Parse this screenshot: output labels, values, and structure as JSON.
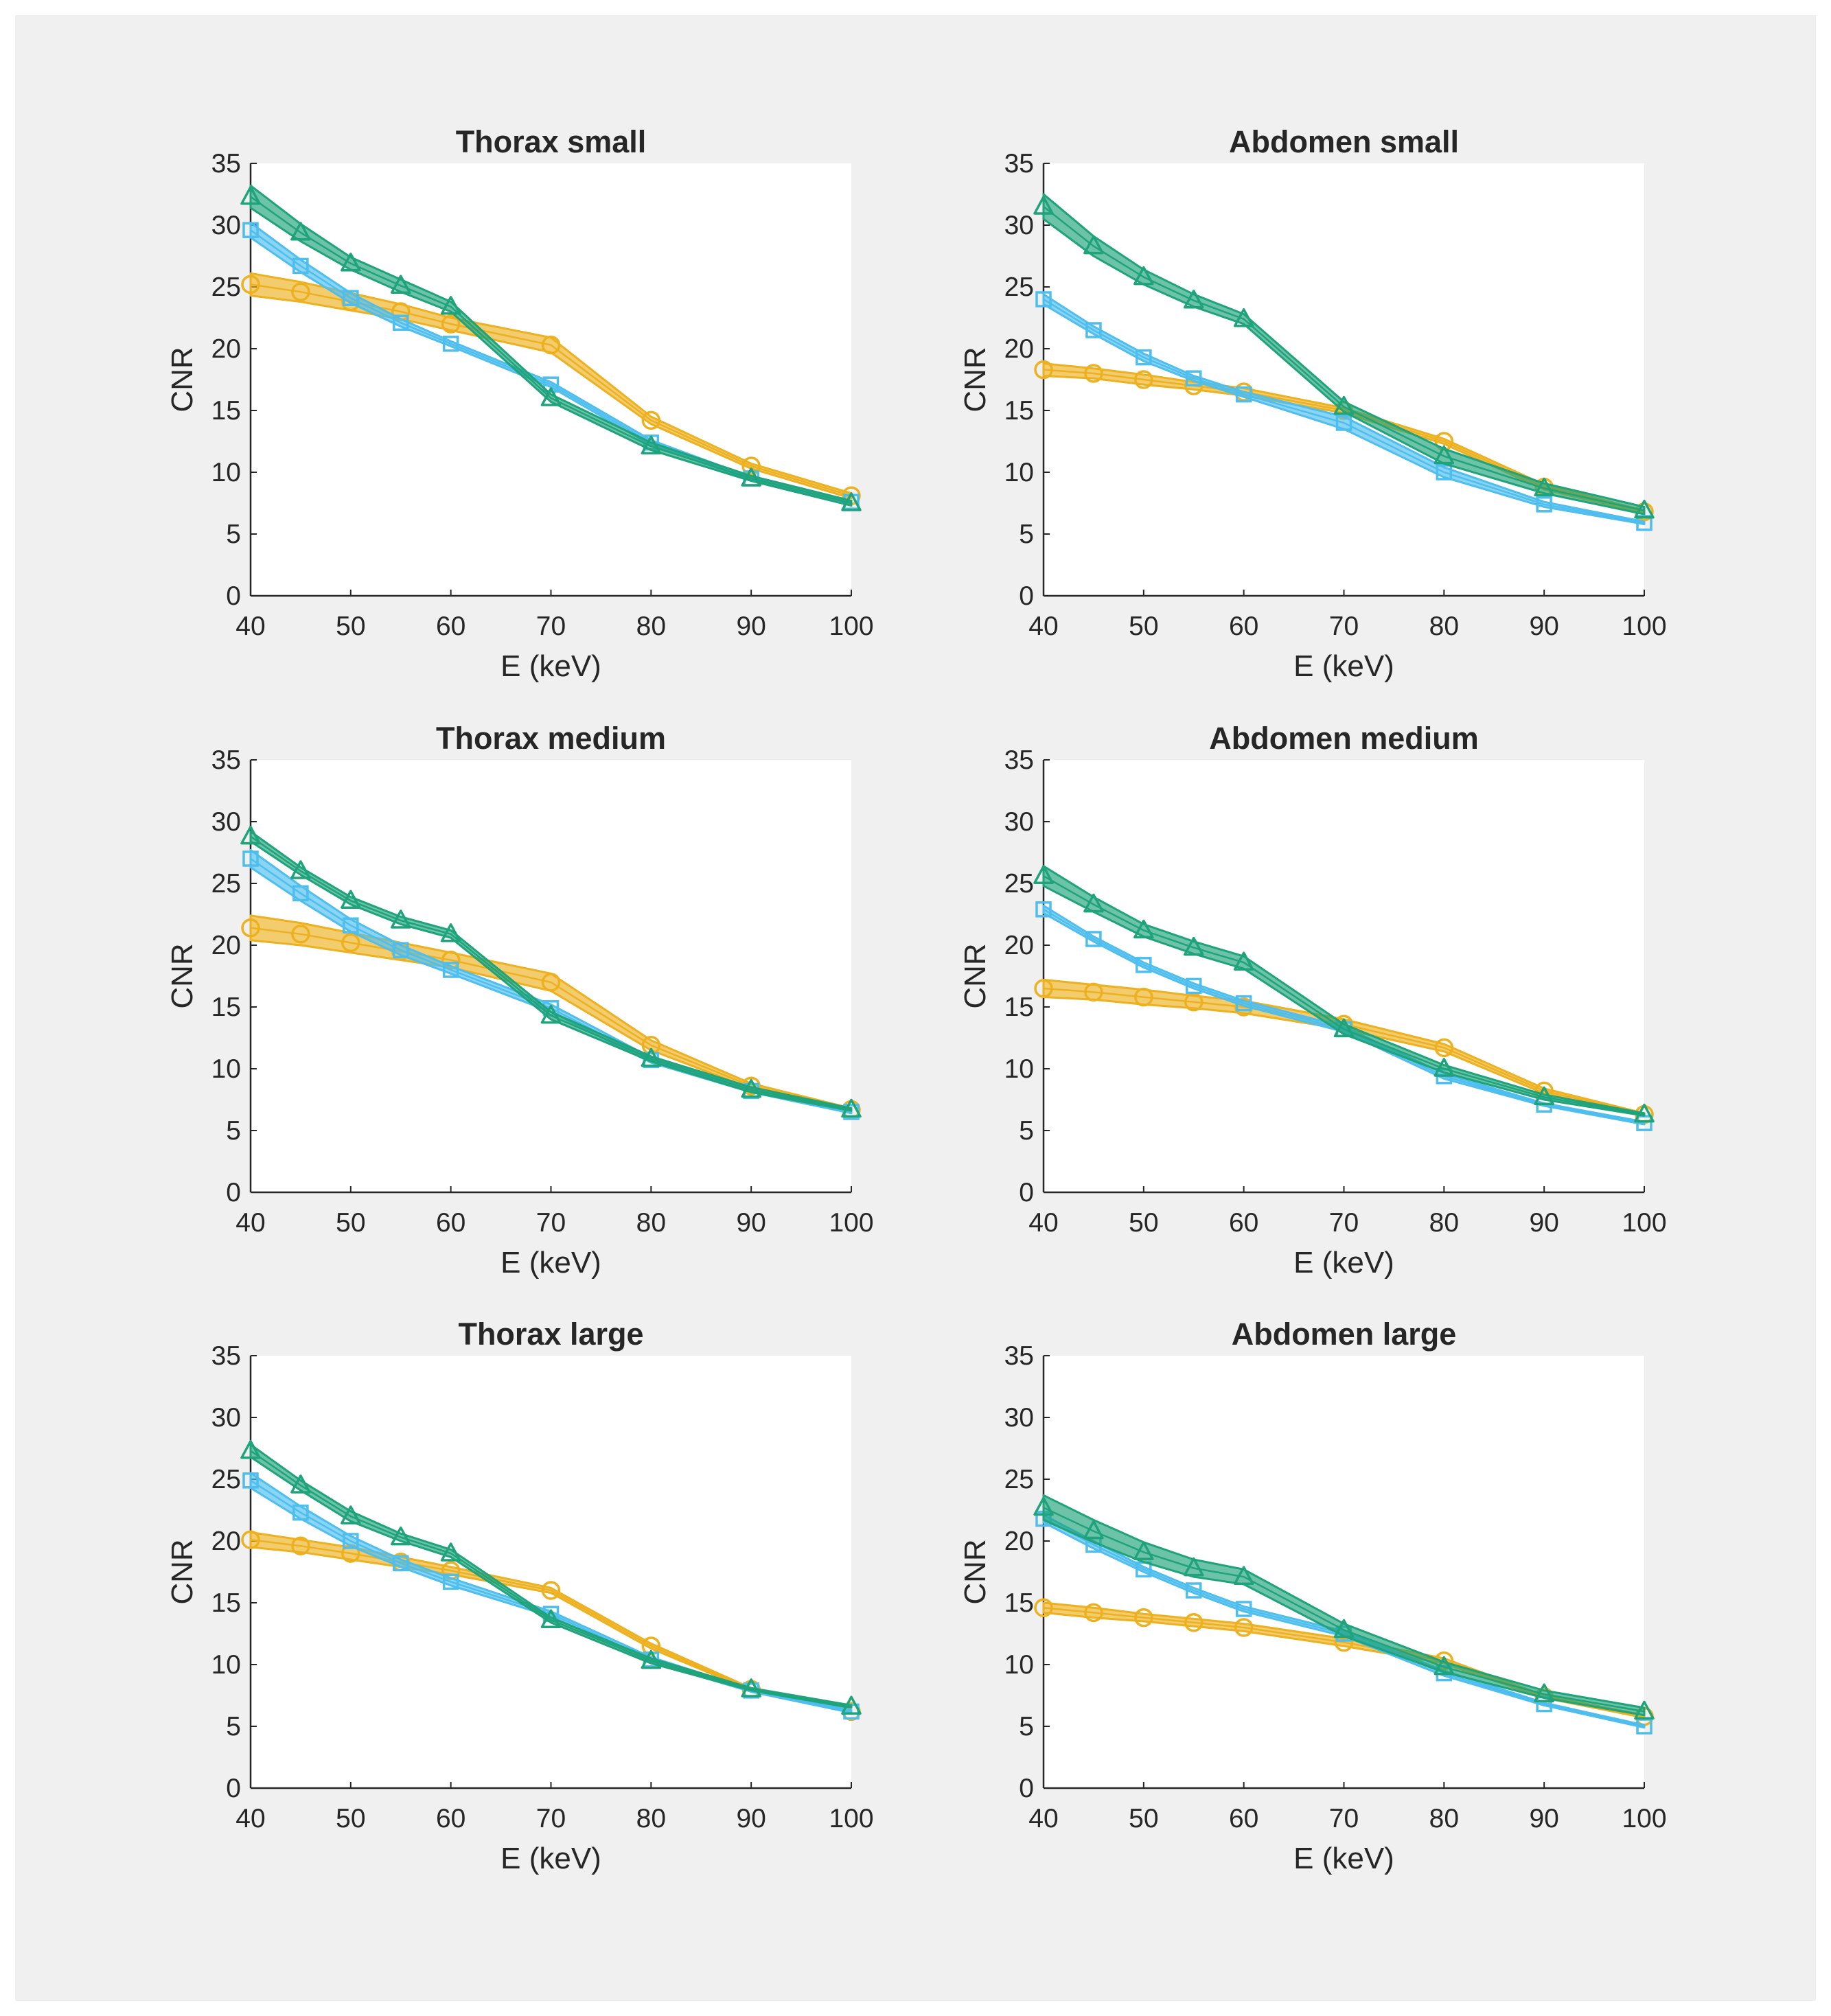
{
  "colors": {
    "figure_background": "#f0f0f0",
    "axes_background": "#ffffff",
    "axis_line": "#262626",
    "legend": {
      "series_orange": "#EDB120",
      "series_blue": "#4DBEEE",
      "series_green": "#1FA37A"
    }
  },
  "chart_data": [
    {
      "type": "line",
      "title": "Thorax small",
      "xlabel": "E (keV)",
      "ylabel": "CNR",
      "xlim": [
        40,
        100
      ],
      "ylim": [
        0,
        35
      ],
      "xticks": [
        40,
        50,
        60,
        70,
        80,
        90,
        100
      ],
      "yticks": [
        0,
        5,
        10,
        15,
        20,
        25,
        30,
        35
      ],
      "grid": false,
      "x": [
        40,
        45,
        50,
        55,
        60,
        70,
        80,
        90,
        100
      ],
      "series": [
        {
          "name": "orange-circle",
          "marker": "circle",
          "color": "#EDB120",
          "values": [
            25.2,
            24.6,
            23.8,
            23.0,
            22.0,
            20.3,
            14.2,
            10.5,
            8.1
          ],
          "band": [
            0.9,
            0.8,
            0.7,
            0.6,
            0.5,
            0.6,
            0.3,
            0.2,
            0.2
          ]
        },
        {
          "name": "blue-square",
          "marker": "square",
          "color": "#4DBEEE",
          "values": [
            29.6,
            26.7,
            24.1,
            22.1,
            20.4,
            17.1,
            12.4,
            9.5,
            7.6
          ],
          "band": [
            0.6,
            0.5,
            0.4,
            0.3,
            0.2,
            0.2,
            0.2,
            0.1,
            0.1
          ]
        },
        {
          "name": "green-triangle",
          "marker": "triangle",
          "color": "#1FA37A",
          "values": [
            32.3,
            29.4,
            26.9,
            25.1,
            23.4,
            16.0,
            12.1,
            9.5,
            7.5
          ],
          "band": [
            0.9,
            0.7,
            0.5,
            0.5,
            0.4,
            0.3,
            0.3,
            0.2,
            0.2
          ]
        }
      ]
    },
    {
      "type": "line",
      "title": "Abdomen small",
      "xlabel": "E (keV)",
      "ylabel": "CNR",
      "xlim": [
        40,
        100
      ],
      "ylim": [
        0,
        35
      ],
      "xticks": [
        40,
        50,
        60,
        70,
        80,
        90,
        100
      ],
      "yticks": [
        0,
        5,
        10,
        15,
        20,
        25,
        30,
        35
      ],
      "grid": false,
      "x": [
        40,
        45,
        50,
        55,
        60,
        70,
        80,
        90,
        100
      ],
      "series": [
        {
          "name": "orange-circle",
          "marker": "circle",
          "color": "#EDB120",
          "values": [
            18.3,
            18.0,
            17.5,
            17.0,
            16.5,
            15.0,
            12.5,
            8.8,
            6.8
          ],
          "band": [
            0.5,
            0.4,
            0.4,
            0.3,
            0.3,
            0.2,
            0.2,
            0.2,
            0.1
          ]
        },
        {
          "name": "blue-square",
          "marker": "square",
          "color": "#4DBEEE",
          "values": [
            24.0,
            21.5,
            19.3,
            17.6,
            16.3,
            14.0,
            10.0,
            7.4,
            5.9
          ],
          "band": [
            0.4,
            0.3,
            0.3,
            0.2,
            0.2,
            0.5,
            0.4,
            0.2,
            0.1
          ]
        },
        {
          "name": "green-triangle",
          "marker": "triangle",
          "color": "#1FA37A",
          "values": [
            31.5,
            28.3,
            25.8,
            23.9,
            22.4,
            15.3,
            11.3,
            8.7,
            6.9
          ],
          "band": [
            1.0,
            0.8,
            0.6,
            0.5,
            0.4,
            0.4,
            0.6,
            0.4,
            0.3
          ]
        }
      ]
    },
    {
      "type": "line",
      "title": "Thorax medium",
      "xlabel": "E (keV)",
      "ylabel": "CNR",
      "xlim": [
        40,
        100
      ],
      "ylim": [
        0,
        35
      ],
      "xticks": [
        40,
        50,
        60,
        70,
        80,
        90,
        100
      ],
      "yticks": [
        0,
        5,
        10,
        15,
        20,
        25,
        30,
        35
      ],
      "grid": false,
      "x": [
        40,
        45,
        50,
        55,
        60,
        70,
        80,
        90,
        100
      ],
      "series": [
        {
          "name": "orange-circle",
          "marker": "circle",
          "color": "#EDB120",
          "values": [
            21.4,
            20.9,
            20.2,
            19.5,
            18.8,
            17.0,
            11.9,
            8.6,
            6.7
          ],
          "band": [
            1.0,
            0.9,
            0.8,
            0.7,
            0.6,
            0.7,
            0.4,
            0.2,
            0.1
          ]
        },
        {
          "name": "blue-square",
          "marker": "square",
          "color": "#4DBEEE",
          "values": [
            27.0,
            24.2,
            21.6,
            19.6,
            18.0,
            14.9,
            10.7,
            8.2,
            6.5
          ],
          "band": [
            0.7,
            0.6,
            0.5,
            0.4,
            0.3,
            0.3,
            0.2,
            0.1,
            0.1
          ]
        },
        {
          "name": "green-triangle",
          "marker": "triangle",
          "color": "#1FA37A",
          "values": [
            28.8,
            26.0,
            23.6,
            22.0,
            20.9,
            14.3,
            10.8,
            8.3,
            6.7
          ],
          "band": [
            0.4,
            0.3,
            0.3,
            0.3,
            0.3,
            0.3,
            0.2,
            0.2,
            0.1
          ]
        }
      ]
    },
    {
      "type": "line",
      "title": "Abdomen medium",
      "xlabel": "E (keV)",
      "ylabel": "CNR",
      "xlim": [
        40,
        100
      ],
      "ylim": [
        0,
        35
      ],
      "xticks": [
        40,
        50,
        60,
        70,
        80,
        90,
        100
      ],
      "yticks": [
        0,
        5,
        10,
        15,
        20,
        25,
        30,
        35
      ],
      "grid": false,
      "x": [
        40,
        45,
        50,
        55,
        60,
        70,
        80,
        90,
        100
      ],
      "series": [
        {
          "name": "orange-circle",
          "marker": "circle",
          "color": "#EDB120",
          "values": [
            16.5,
            16.2,
            15.8,
            15.4,
            15.0,
            13.6,
            11.7,
            8.2,
            6.3
          ],
          "band": [
            0.7,
            0.6,
            0.6,
            0.5,
            0.5,
            0.4,
            0.3,
            0.2,
            0.1
          ]
        },
        {
          "name": "blue-square",
          "marker": "square",
          "color": "#4DBEEE",
          "values": [
            22.9,
            20.5,
            18.4,
            16.7,
            15.3,
            13.2,
            9.4,
            7.1,
            5.6
          ],
          "band": [
            0.3,
            0.2,
            0.2,
            0.2,
            0.2,
            0.2,
            0.2,
            0.1,
            0.1
          ]
        },
        {
          "name": "green-triangle",
          "marker": "triangle",
          "color": "#1FA37A",
          "values": [
            25.6,
            23.3,
            21.2,
            19.8,
            18.6,
            13.2,
            10.0,
            7.7,
            6.3
          ],
          "band": [
            0.8,
            0.6,
            0.5,
            0.5,
            0.5,
            0.4,
            0.3,
            0.2,
            0.1
          ]
        }
      ]
    },
    {
      "type": "line",
      "title": "Thorax large",
      "xlabel": "E (keV)",
      "ylabel": "CNR",
      "xlim": [
        40,
        100
      ],
      "ylim": [
        0,
        35
      ],
      "xticks": [
        40,
        50,
        60,
        70,
        80,
        90,
        100
      ],
      "yticks": [
        0,
        5,
        10,
        15,
        20,
        25,
        30,
        35
      ],
      "grid": false,
      "x": [
        40,
        45,
        50,
        55,
        60,
        70,
        80,
        90,
        100
      ],
      "series": [
        {
          "name": "orange-circle",
          "marker": "circle",
          "color": "#EDB120",
          "values": [
            20.1,
            19.6,
            19.0,
            18.3,
            17.6,
            16.0,
            11.5,
            8.0,
            6.2
          ],
          "band": [
            0.6,
            0.5,
            0.5,
            0.4,
            0.3,
            0.2,
            0.2,
            0.1,
            0.1
          ]
        },
        {
          "name": "blue-square",
          "marker": "square",
          "color": "#4DBEEE",
          "values": [
            24.9,
            22.3,
            20.0,
            18.2,
            16.7,
            14.1,
            10.4,
            7.9,
            6.2
          ],
          "band": [
            0.6,
            0.5,
            0.4,
            0.3,
            0.3,
            0.2,
            0.2,
            0.1,
            0.1
          ]
        },
        {
          "name": "green-triangle",
          "marker": "triangle",
          "color": "#1FA37A",
          "values": [
            27.3,
            24.5,
            22.0,
            20.3,
            19.0,
            13.6,
            10.3,
            8.0,
            6.6
          ],
          "band": [
            0.5,
            0.4,
            0.4,
            0.3,
            0.3,
            0.2,
            0.2,
            0.1,
            0.1
          ]
        }
      ]
    },
    {
      "type": "line",
      "title": "Abdomen large",
      "xlabel": "E (keV)",
      "ylabel": "CNR",
      "xlim": [
        40,
        100
      ],
      "ylim": [
        0,
        35
      ],
      "xticks": [
        40,
        50,
        60,
        70,
        80,
        90,
        100
      ],
      "yticks": [
        0,
        5,
        10,
        15,
        20,
        25,
        30,
        35
      ],
      "grid": false,
      "x": [
        40,
        45,
        50,
        55,
        60,
        70,
        80,
        90,
        100
      ],
      "series": [
        {
          "name": "orange-circle",
          "marker": "circle",
          "color": "#EDB120",
          "values": [
            14.6,
            14.2,
            13.8,
            13.4,
            13.0,
            11.8,
            10.3,
            7.4,
            5.8
          ],
          "band": [
            0.4,
            0.4,
            0.3,
            0.3,
            0.3,
            0.3,
            0.2,
            0.1,
            0.1
          ]
        },
        {
          "name": "blue-square",
          "marker": "square",
          "color": "#4DBEEE",
          "values": [
            21.8,
            19.7,
            17.7,
            16.0,
            14.5,
            12.5,
            9.3,
            6.8,
            5.0
          ],
          "band": [
            0.3,
            0.3,
            0.2,
            0.2,
            0.2,
            0.2,
            0.2,
            0.1,
            0.1
          ]
        },
        {
          "name": "green-triangle",
          "marker": "triangle",
          "color": "#1FA37A",
          "values": [
            22.7,
            20.8,
            19.1,
            17.8,
            17.1,
            12.8,
            9.8,
            7.6,
            6.2
          ],
          "band": [
            1.0,
            0.9,
            0.8,
            0.7,
            0.6,
            0.5,
            0.4,
            0.3,
            0.3
          ]
        }
      ]
    }
  ]
}
